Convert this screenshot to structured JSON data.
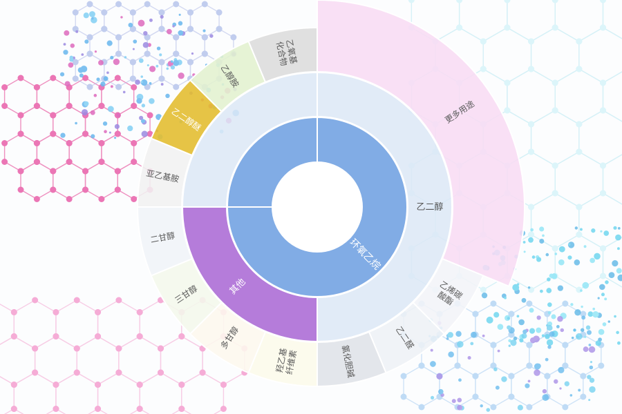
{
  "chart_data": {
    "type": "sunburst",
    "center": "",
    "inner_ring": [
      {
        "label": "环氧乙烷",
        "value": 75,
        "color": "#7aa8e4"
      },
      {
        "label": "",
        "value": 25,
        "color": "#7aa8e4"
      }
    ],
    "middle_ring": [
      {
        "label": "乙二醇",
        "value": 50,
        "color": "#dce8f6"
      },
      {
        "label": "其他",
        "value": 25,
        "color": "#a865d4"
      },
      {
        "label": "",
        "value": 25,
        "color": "#dce8f6"
      }
    ],
    "outer_ring": [
      {
        "label": "更多用途",
        "value": 25,
        "color": "#f8dcf4"
      },
      {
        "label": "乙烯碳酸酯",
        "value": 5,
        "color": "#f2f4f8"
      },
      {
        "label": "乙二醛",
        "value": 5,
        "color": "#eef1f6"
      },
      {
        "label": "氯化胆碱",
        "value": 5,
        "color": "#dfe3e8"
      },
      {
        "label": "羟乙基纤维素",
        "value": 5,
        "color": "#fcfbea"
      },
      {
        "label": "多甘醇",
        "value": 5,
        "color": "#fdf8ee"
      },
      {
        "label": "三甘醇",
        "value": 5,
        "color": "#f4f8ec"
      },
      {
        "label": "二甘醇",
        "value": 5,
        "color": "#f0f4f8"
      },
      {
        "label": "亚乙基胺",
        "value": 5,
        "color": "#f1f1f1"
      },
      {
        "label": "乙二醇醚",
        "value": 5,
        "color": "#e3bc2c"
      },
      {
        "label": "乙醇胺",
        "value": 5,
        "color": "#e2f1cf"
      },
      {
        "label": "乙氧基化合物",
        "value": 5,
        "color": "#dcdcdc"
      }
    ]
  }
}
